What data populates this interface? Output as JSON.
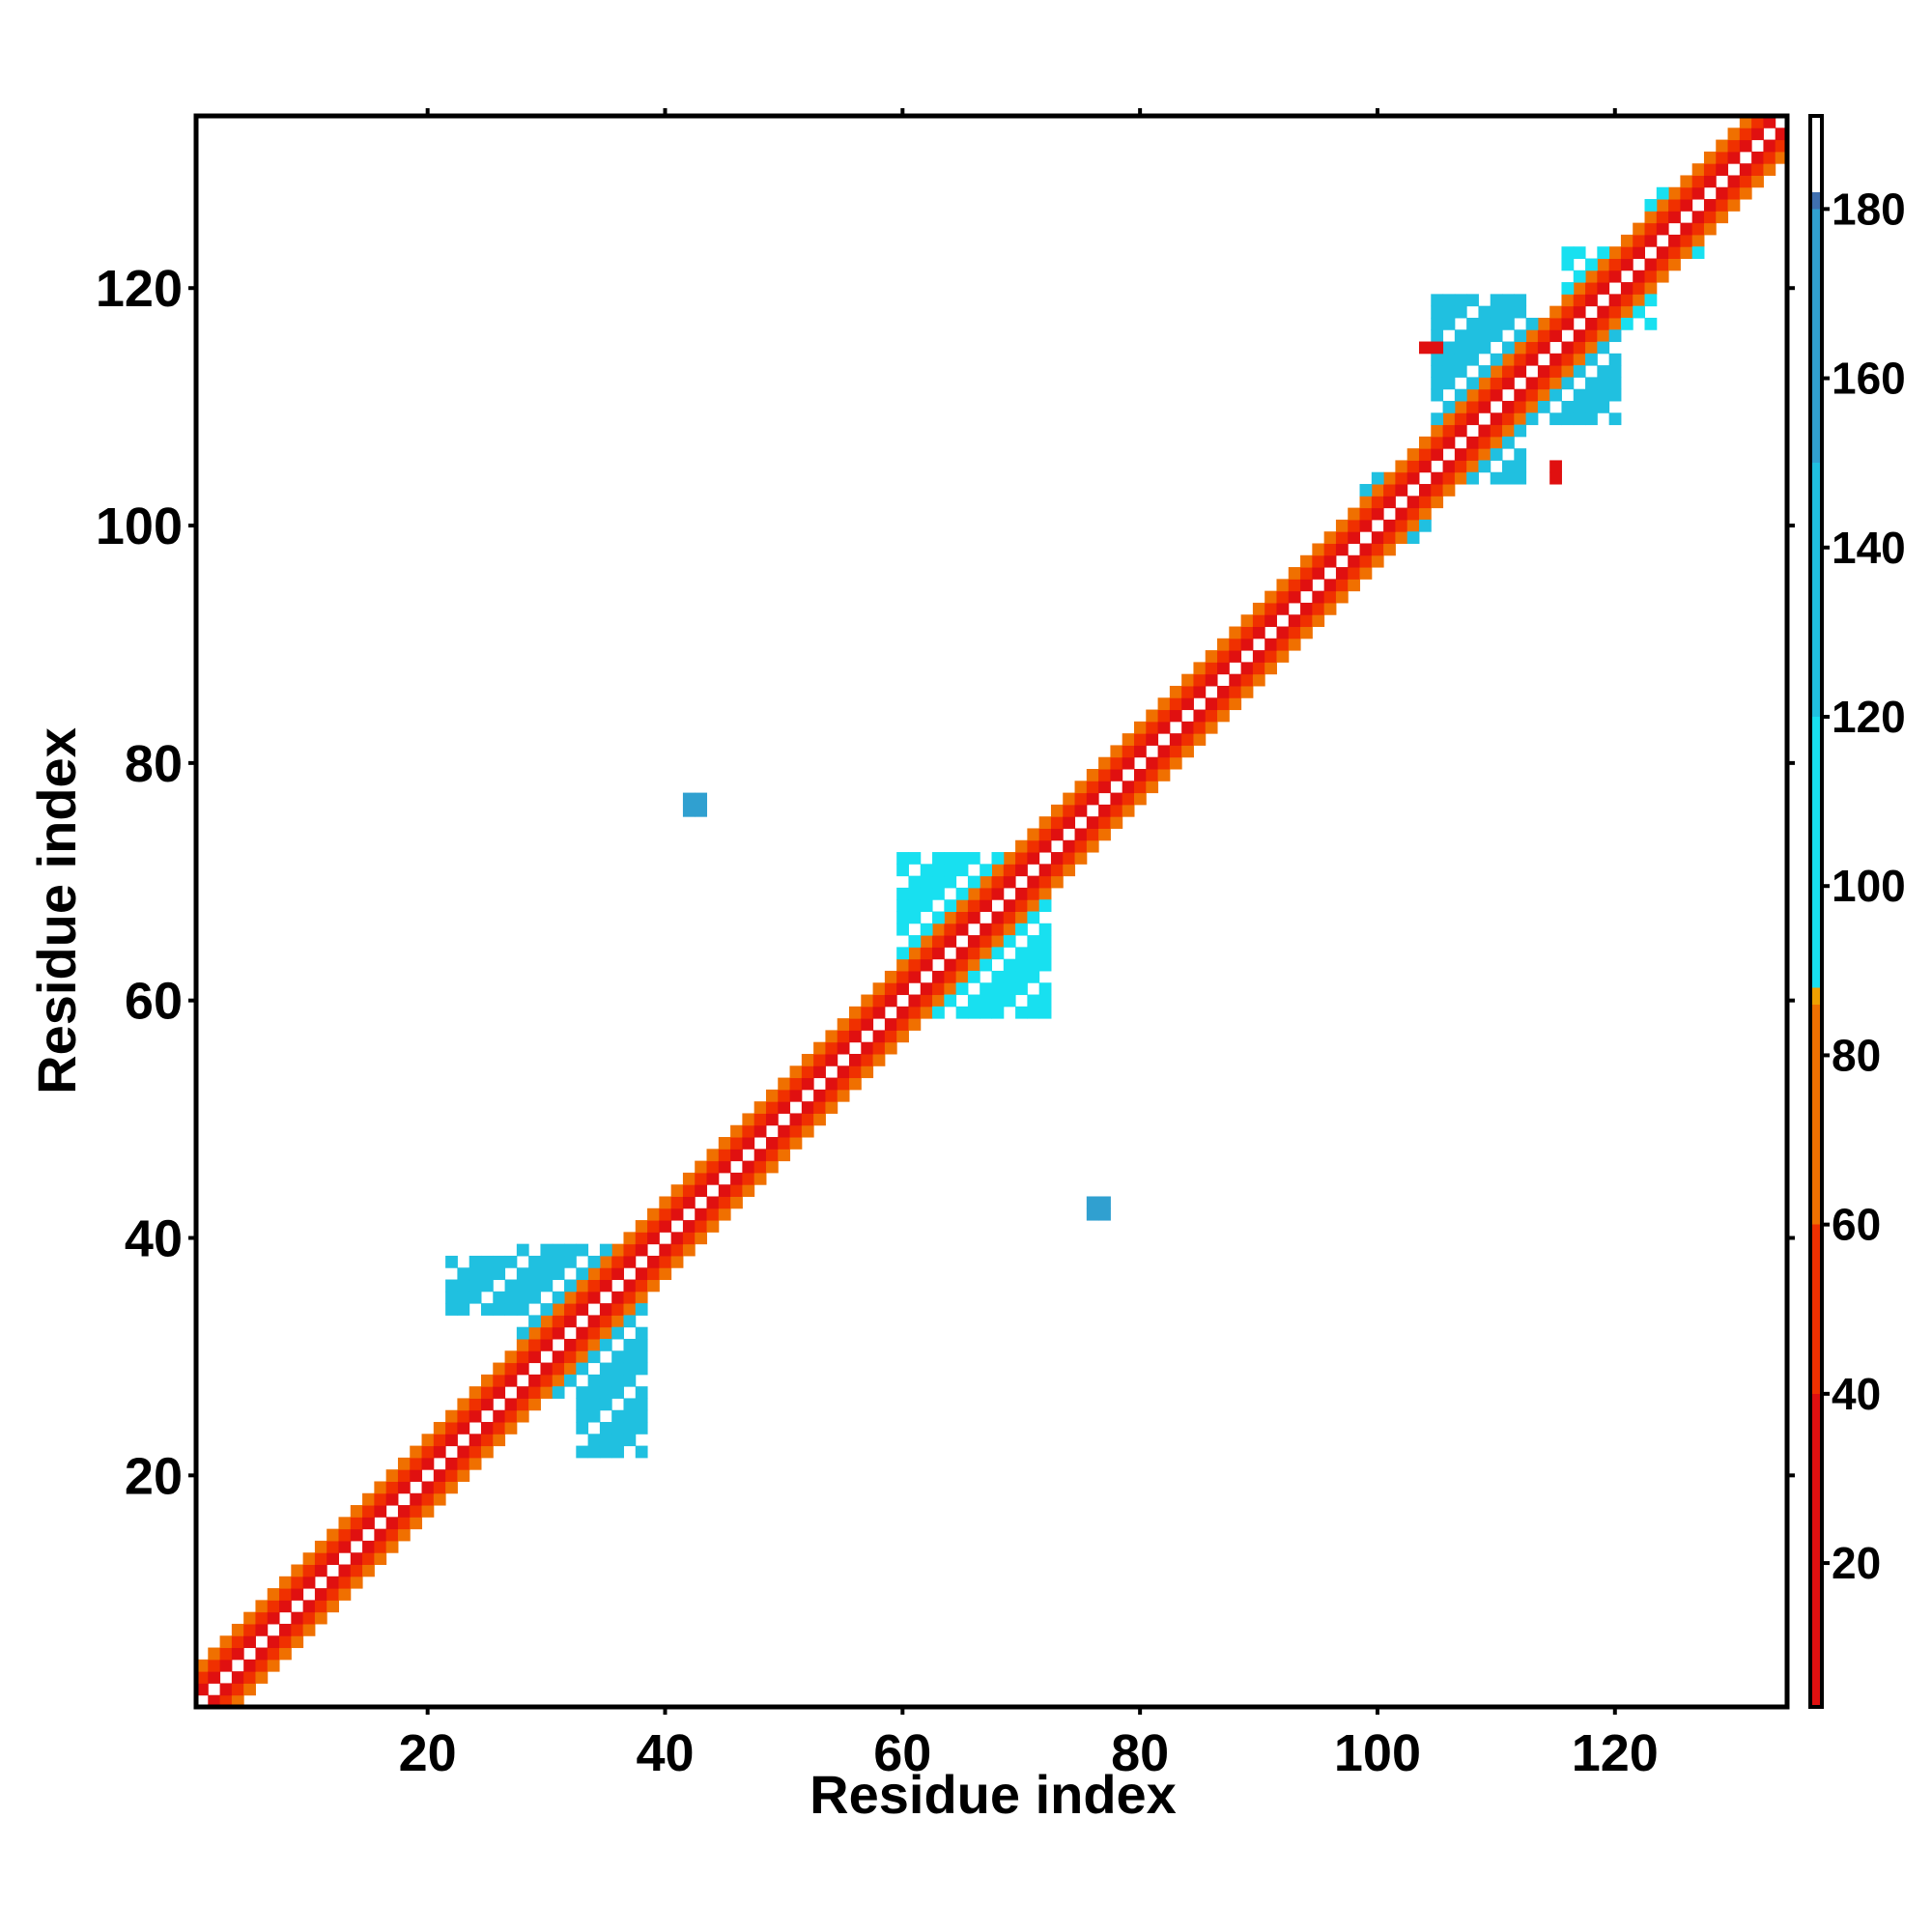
{
  "chart_data": {
    "type": "heatmap",
    "title": "",
    "xlabel": "Residue index",
    "ylabel": "Residue index",
    "x_range": [
      1,
      134
    ],
    "y_range": [
      1,
      134
    ],
    "x_ticks": [
      20,
      40,
      60,
      80,
      100,
      120
    ],
    "y_ticks": [
      20,
      40,
      60,
      80,
      100,
      120
    ],
    "x_tick_labels": [
      "20",
      "40",
      "60",
      "80",
      "100",
      "120"
    ],
    "y_tick_labels": [
      "20",
      "40",
      "60",
      "80",
      "100",
      "120"
    ],
    "colorbar": {
      "ticks": [
        20,
        40,
        60,
        80,
        100,
        120,
        140,
        160,
        180
      ],
      "tick_labels": [
        "20",
        "40",
        "60",
        "80",
        "100",
        "120",
        "140",
        "160",
        "180"
      ],
      "range": [
        3,
        191
      ],
      "stops": [
        {
          "value": 3,
          "color": "#e01010"
        },
        {
          "value": 40,
          "color": "#f03000"
        },
        {
          "value": 60,
          "color": "#f07000"
        },
        {
          "value": 86,
          "color": "#f0a000"
        },
        {
          "value": 88,
          "color": "#18e0f0"
        },
        {
          "value": 120,
          "color": "#20c0e0"
        },
        {
          "value": 150,
          "color": "#30a0d0"
        },
        {
          "value": 180,
          "color": "#4070b0"
        },
        {
          "value": 182,
          "color": "#ffffff"
        },
        {
          "value": 191,
          "color": "#ffffff"
        }
      ]
    },
    "diagonal_band": {
      "pattern": [
        {
          "offset": 1,
          "value": 25
        },
        {
          "offset": 2,
          "value": 55
        },
        {
          "offset": 3,
          "value": 75
        }
      ]
    },
    "regions": [
      {
        "x": [
          28,
          38
        ],
        "y": [
          27,
          39
        ],
        "value": 125
      },
      {
        "x": [
          33,
          38
        ],
        "y": [
          22,
          26
        ],
        "value": 120
      },
      {
        "x": [
          22,
          27
        ],
        "y": [
          34,
          38
        ],
        "value": 135
      },
      {
        "x": [
          60,
          72
        ],
        "y": [
          59,
          72
        ],
        "value": 110
      },
      {
        "x": [
          99,
          104
        ],
        "y": [
          99,
          104
        ],
        "value": 140
      },
      {
        "x": [
          105,
          112
        ],
        "y": [
          104,
          119
        ],
        "value": 130
      },
      {
        "x": [
          112,
          120
        ],
        "y": [
          109,
          117
        ],
        "value": 130
      },
      {
        "x": [
          116,
          123
        ],
        "y": [
          117,
          123
        ],
        "value": 105
      },
      {
        "x": [
          123,
          127
        ],
        "y": [
          123,
          128
        ],
        "value": 100
      }
    ],
    "isolated_points": [
      {
        "x": 42,
        "y": 76,
        "value": 150
      },
      {
        "x": 42,
        "y": 77,
        "value": 150
      },
      {
        "x": 43,
        "y": 76,
        "value": 150
      },
      {
        "x": 43,
        "y": 77,
        "value": 150
      },
      {
        "x": 76,
        "y": 42,
        "value": 150
      },
      {
        "x": 76,
        "y": 43,
        "value": 150
      },
      {
        "x": 77,
        "y": 42,
        "value": 150
      },
      {
        "x": 77,
        "y": 43,
        "value": 150
      },
      {
        "x": 104,
        "y": 115,
        "value": 30
      },
      {
        "x": 105,
        "y": 115,
        "value": 30
      },
      {
        "x": 115,
        "y": 104,
        "value": 30
      },
      {
        "x": 115,
        "y": 105,
        "value": 30
      }
    ]
  }
}
